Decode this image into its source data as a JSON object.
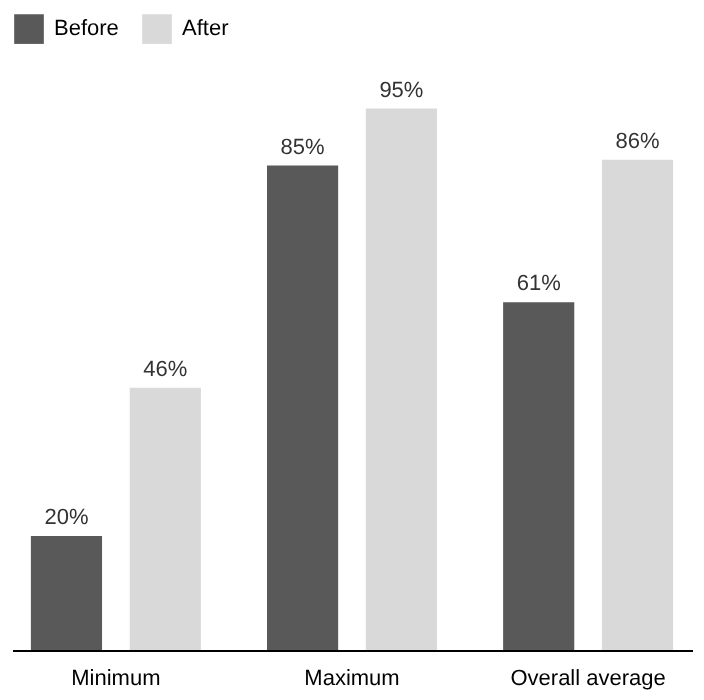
{
  "chart_data": {
    "type": "bar",
    "categories": [
      "Minimum",
      "Maximum",
      "Overall average"
    ],
    "series": [
      {
        "name": "Before",
        "color": "#595959",
        "values": [
          20,
          85,
          61
        ],
        "value_labels": [
          "20%",
          "85%",
          "61%"
        ]
      },
      {
        "name": "After",
        "color": "#d9d9d9",
        "values": [
          46,
          95,
          86
        ],
        "value_labels": [
          "46%",
          "95%",
          "86%"
        ]
      }
    ],
    "legend": "top",
    "grid": false
  }
}
